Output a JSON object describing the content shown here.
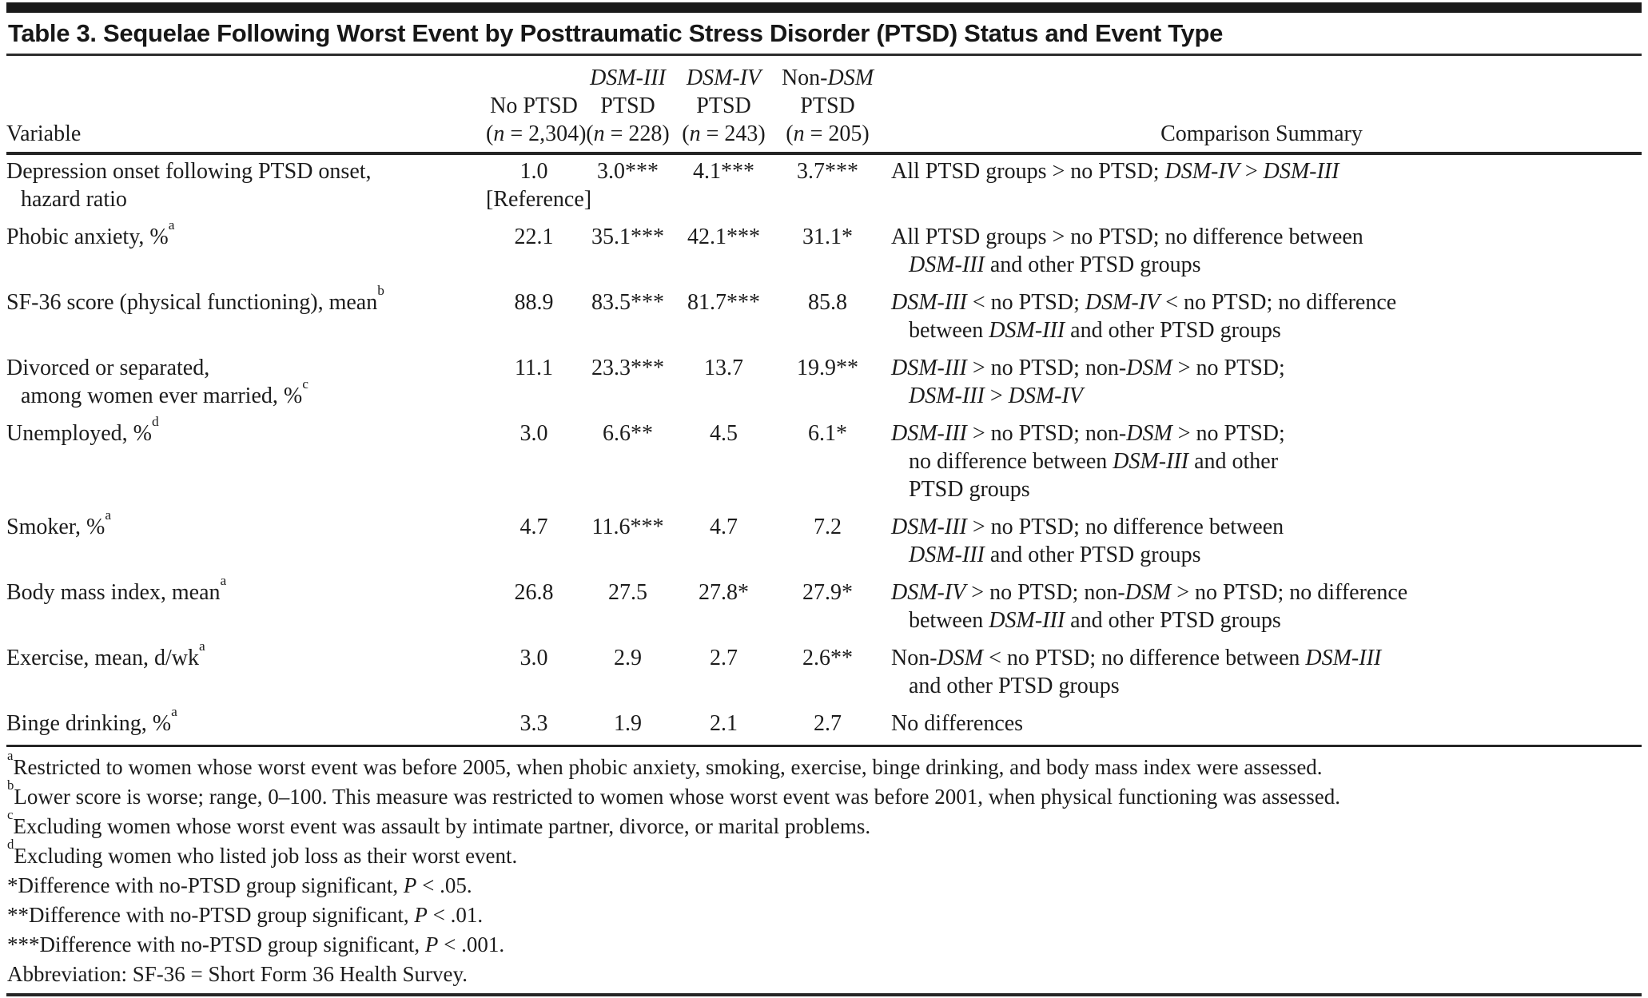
{
  "title": "Table 3. Sequelae Following Worst Event by Posttraumatic Stress Disorder (PTSD) Status and Event Type",
  "table": {
    "columns": {
      "variable": "Variable",
      "groups": [
        {
          "lines": [
            "No PTSD",
            "(n = 2,304)"
          ]
        },
        {
          "lines": [
            "DSM-III",
            "PTSD",
            "(n = 228)"
          ]
        },
        {
          "lines": [
            "DSM-IV",
            "PTSD",
            "(n = 243)"
          ]
        },
        {
          "lines": [
            "Non-DSM",
            "PTSD",
            "(n = 205)"
          ]
        }
      ],
      "summary": "Comparison Summary"
    },
    "rows": [
      {
        "label": [
          "Depression onset following PTSD onset,",
          "hazard ratio"
        ],
        "values": [
          [
            "1.0",
            "[Reference]"
          ],
          [
            "3.0***"
          ],
          [
            "4.1***"
          ],
          [
            "3.7***"
          ]
        ],
        "summary": [
          "All PTSD groups > no PTSD; DSM-IV > DSM-III"
        ]
      },
      {
        "label": [
          "Phobic anxiety, %^a"
        ],
        "values": [
          [
            "22.1"
          ],
          [
            "35.1***"
          ],
          [
            "42.1***"
          ],
          [
            "31.1*"
          ]
        ],
        "summary": [
          "All PTSD groups > no PTSD; no difference between",
          "DSM-III and other PTSD groups"
        ]
      },
      {
        "label": [
          "SF-36 score (physical functioning), mean^b"
        ],
        "values": [
          [
            "88.9"
          ],
          [
            "83.5***"
          ],
          [
            "81.7***"
          ],
          [
            "85.8"
          ]
        ],
        "summary": [
          "DSM-III < no PTSD; DSM-IV < no PTSD; no difference",
          "between DSM-III and other PTSD groups"
        ]
      },
      {
        "label": [
          "Divorced or separated,",
          "among women ever married, %^c"
        ],
        "values": [
          [
            "11.1"
          ],
          [
            "23.3***"
          ],
          [
            "13.7"
          ],
          [
            "19.9**"
          ]
        ],
        "summary": [
          "DSM-III > no PTSD; non-DSM > no PTSD;",
          "DSM-III > DSM-IV"
        ]
      },
      {
        "label": [
          "Unemployed, %^d"
        ],
        "values": [
          [
            "3.0"
          ],
          [
            "6.6**"
          ],
          [
            "4.5"
          ],
          [
            "6.1*"
          ]
        ],
        "summary": [
          "DSM-III > no PTSD; non-DSM > no PTSD;",
          "no difference between DSM-III and other",
          "PTSD groups"
        ]
      },
      {
        "label": [
          "Smoker, %^a"
        ],
        "values": [
          [
            "4.7"
          ],
          [
            "11.6***"
          ],
          [
            "4.7"
          ],
          [
            "7.2"
          ]
        ],
        "summary": [
          "DSM-III > no PTSD; no difference between",
          "DSM-III and other PTSD groups"
        ]
      },
      {
        "label": [
          "Body mass index, mean^a"
        ],
        "values": [
          [
            "26.8"
          ],
          [
            "27.5"
          ],
          [
            "27.8*"
          ],
          [
            "27.9*"
          ]
        ],
        "summary": [
          "DSM-IV > no PTSD; non-DSM > no PTSD; no difference",
          "between DSM-III and other PTSD groups"
        ]
      },
      {
        "label": [
          "Exercise, mean, d/wk^a"
        ],
        "values": [
          [
            "3.0"
          ],
          [
            "2.9"
          ],
          [
            "2.7"
          ],
          [
            "2.6**"
          ]
        ],
        "summary": [
          "Non-DSM < no PTSD; no difference between DSM-III",
          "and other PTSD groups"
        ]
      },
      {
        "label": [
          "Binge drinking, %^a"
        ],
        "values": [
          [
            "3.3"
          ],
          [
            "1.9"
          ],
          [
            "2.1"
          ],
          [
            "2.7"
          ]
        ],
        "summary": [
          "No differences"
        ]
      }
    ]
  },
  "footnotes": [
    "^aRestricted to women whose worst event was before 2005, when phobic anxiety, smoking, exercise, binge drinking, and body mass index were assessed.",
    "^bLower score is worse; range, 0–100. This measure was restricted to women whose worst event was before 2001, when physical functioning was assessed.",
    "^cExcluding women whose worst event was assault by intimate partner, divorce, or marital problems.",
    "^dExcluding women who listed job loss as their worst event.",
    "*Difference with no-PTSD group significant, P < .05.",
    "**Difference with no-PTSD group significant, P < .01.",
    "***Difference with no-PTSD group significant, P < .001.",
    "Abbreviation: SF-36 = Short Form 36 Health Survey."
  ]
}
